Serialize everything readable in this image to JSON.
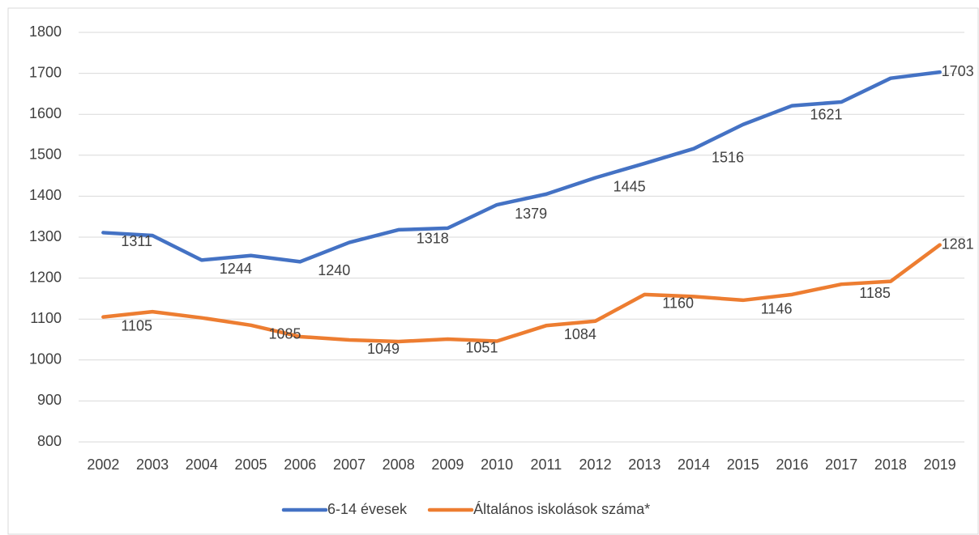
{
  "chart_data": {
    "type": "line",
    "categories": [
      "2002",
      "2003",
      "2004",
      "2005",
      "2006",
      "2007",
      "2008",
      "2009",
      "2010",
      "2011",
      "2012",
      "2013",
      "2014",
      "2015",
      "2016",
      "2017",
      "2018",
      "2019"
    ],
    "series": [
      {
        "name": "6-14 évesek",
        "color": "#4472c4",
        "values": [
          1311,
          1304,
          1244,
          1255,
          1240,
          1287,
          1318,
          1322,
          1379,
          1405,
          1445,
          1480,
          1516,
          1575,
          1621,
          1630,
          1688,
          1703
        ],
        "value_labels": [
          "1311",
          null,
          "1244",
          null,
          "1240",
          null,
          "1318",
          null,
          "1379",
          null,
          "1445",
          null,
          "1516",
          null,
          "1621",
          null,
          null,
          "1703"
        ]
      },
      {
        "name": "Általános iskolások száma*",
        "color": "#ed7d31",
        "values": [
          1105,
          1118,
          1103,
          1085,
          1057,
          1049,
          1045,
          1051,
          1046,
          1084,
          1095,
          1160,
          1155,
          1146,
          1160,
          1185,
          1192,
          1281
        ],
        "value_labels": [
          "1105",
          null,
          null,
          "1085",
          null,
          "1049",
          null,
          "1051",
          null,
          "1084",
          null,
          "1160",
          null,
          "1146",
          null,
          "1185",
          null,
          "1281"
        ]
      }
    ],
    "ylim": [
      800,
      1800
    ],
    "yticks": [
      800,
      900,
      1000,
      1100,
      1200,
      1300,
      1400,
      1500,
      1600,
      1700,
      1800
    ],
    "grid": true,
    "legend": "bottom"
  }
}
